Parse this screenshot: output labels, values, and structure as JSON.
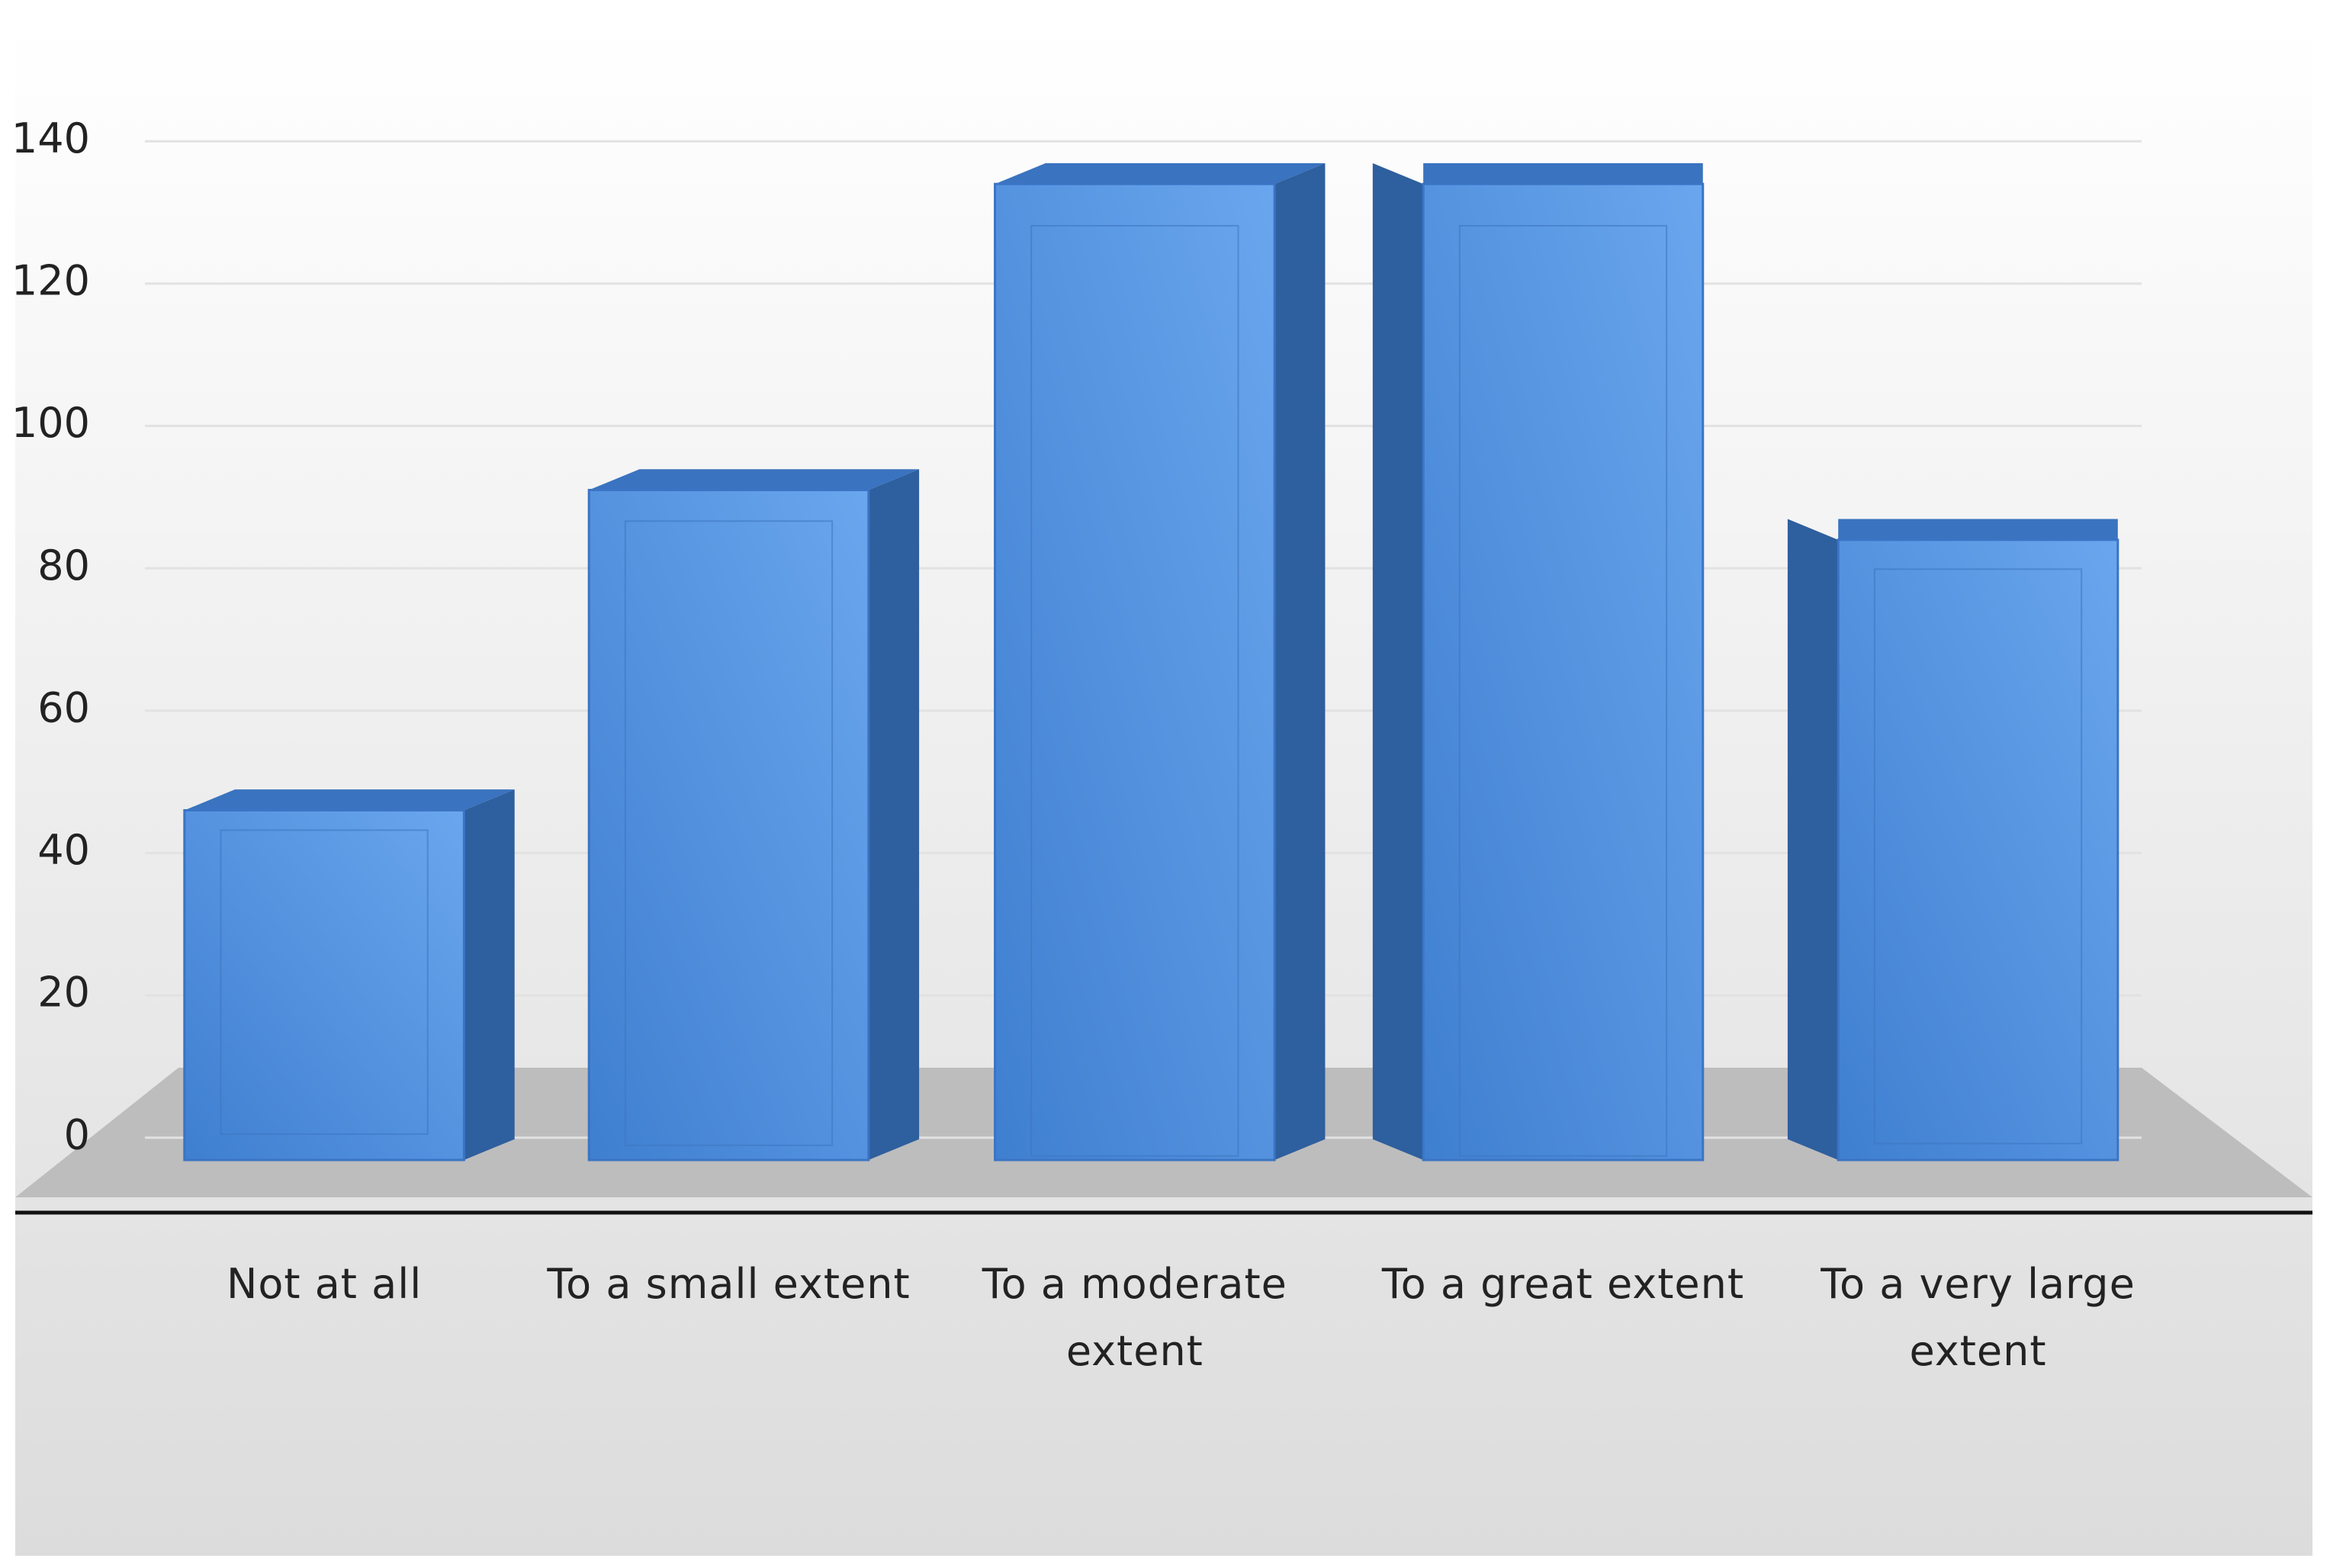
{
  "chart_data": {
    "type": "bar3d",
    "categories": [
      "Not at all",
      "To a small extent",
      "To a moderate extent",
      "To a great extent",
      "To a very large extent"
    ],
    "values": [
      46,
      91,
      134,
      134,
      84
    ],
    "color": "#4a86d6",
    "ylim": [
      0,
      140
    ],
    "yticks": [
      0,
      20,
      40,
      60,
      80,
      100,
      120,
      140
    ],
    "grid": true
  }
}
